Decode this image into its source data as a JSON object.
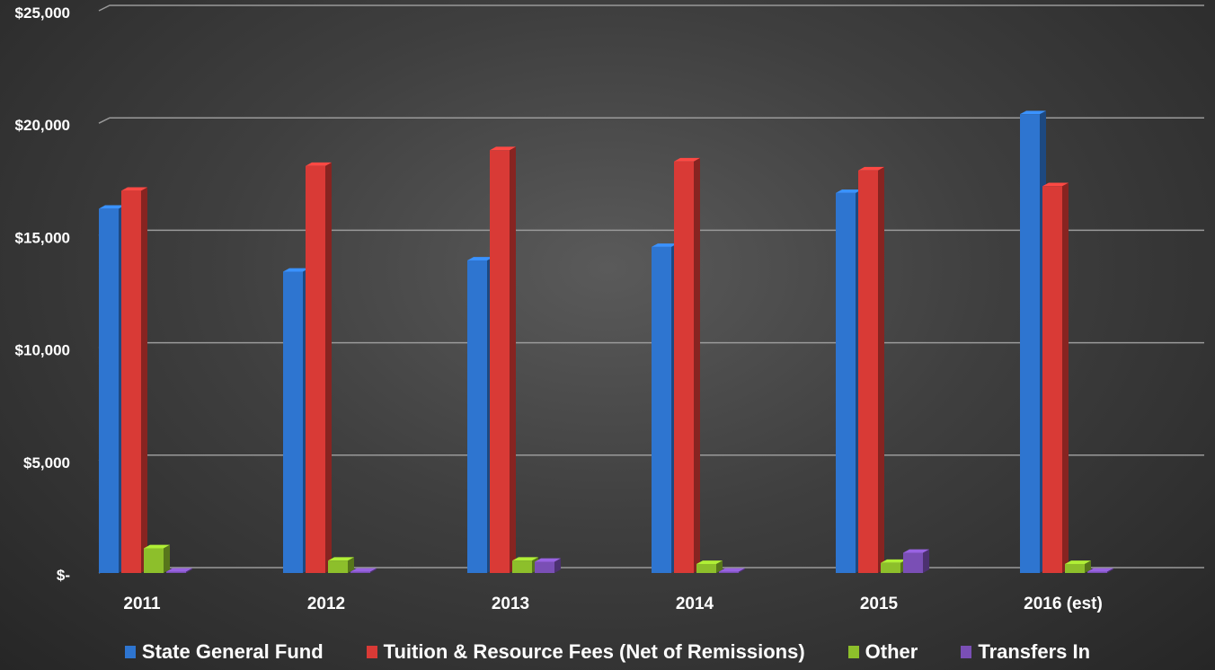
{
  "chart_data": {
    "type": "bar",
    "categories": [
      "2011",
      "2012",
      "2013",
      "2014",
      "2015",
      "2016 (est)"
    ],
    "series": [
      {
        "name": "State General Fund",
        "color": "#2E75D0",
        "values": [
          16200,
          13400,
          13900,
          14500,
          16900,
          20400
        ]
      },
      {
        "name": "Tuition & Resource Fees (Net of Remissions)",
        "color": "#D93A36",
        "values": [
          17000,
          18100,
          18800,
          18300,
          17900,
          17200
        ]
      },
      {
        "name": "Other",
        "color": "#8DBF2B",
        "values": [
          1100,
          550,
          550,
          400,
          450,
          400
        ]
      },
      {
        "name": "Transfers In",
        "color": "#7A4FB5",
        "values": [
          60,
          60,
          500,
          60,
          900,
          60
        ]
      }
    ],
    "yticks": [
      0,
      5000,
      10000,
      15000,
      20000,
      25000
    ],
    "ytick_labels": [
      "$-",
      "$5,000",
      "$10,000",
      "$15,000",
      "$20,000",
      "$25,000"
    ],
    "ylim": [
      0,
      25000
    ],
    "grid": true,
    "legend_position": "bottom"
  }
}
